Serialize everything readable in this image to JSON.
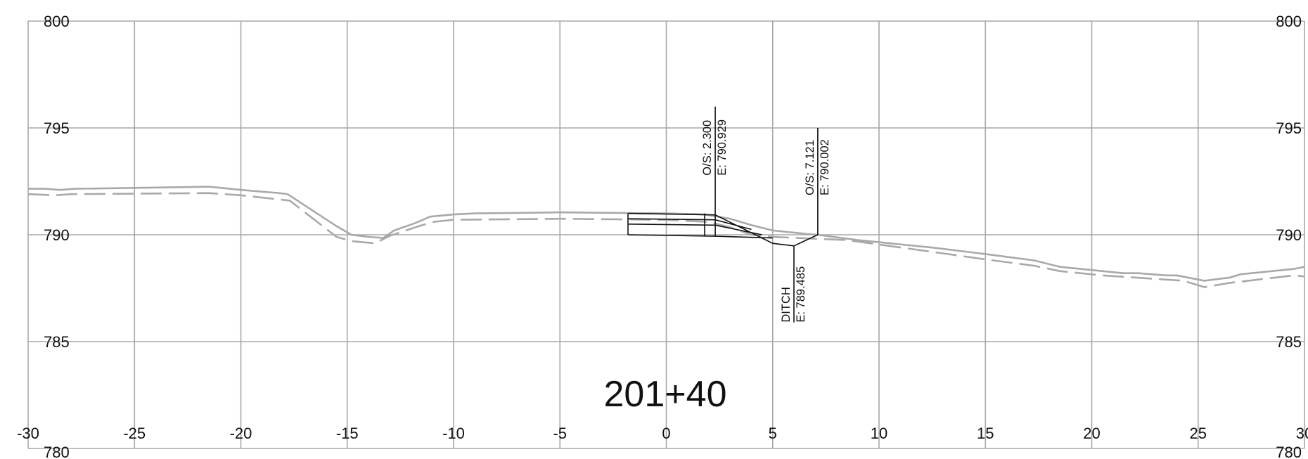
{
  "section": {
    "station": "201+40",
    "offset_axis": {
      "min": -30,
      "max": 30,
      "step": 5,
      "labels": [
        "-30",
        "-25",
        "-20",
        "-15",
        "-10",
        "-5",
        "0",
        "5",
        "10",
        "15",
        "20",
        "25",
        "30"
      ]
    },
    "elevation_axis": {
      "min": 780,
      "max": 800,
      "step": 5,
      "labels": [
        "800",
        "795",
        "790",
        "785",
        "780"
      ]
    },
    "existing_ground_solid": [
      [
        -30,
        792.15
      ],
      [
        -29.2,
        792.15
      ],
      [
        -28.5,
        792.1
      ],
      [
        -27.8,
        792.15
      ],
      [
        -21.5,
        792.25
      ],
      [
        -20,
        792.1
      ],
      [
        -18.2,
        791.95
      ],
      [
        -17.8,
        791.9
      ],
      [
        -16.5,
        791.05
      ],
      [
        -15.5,
        790.4
      ],
      [
        -14.8,
        790.0
      ],
      [
        -14,
        789.9
      ],
      [
        -13.3,
        789.85
      ],
      [
        -12.8,
        790.2
      ],
      [
        -11.8,
        790.55
      ],
      [
        -11.1,
        790.85
      ],
      [
        -10,
        790.95
      ],
      [
        -9,
        791.0
      ],
      [
        -5,
        791.05
      ],
      [
        0,
        791.0
      ],
      [
        1.8,
        790.95
      ],
      [
        3.0,
        790.75
      ],
      [
        4.0,
        790.45
      ],
      [
        5.0,
        790.2
      ],
      [
        6.5,
        790.05
      ],
      [
        7.1,
        790.0
      ],
      [
        9,
        789.75
      ],
      [
        12.5,
        789.4
      ],
      [
        15,
        789.1
      ],
      [
        17.3,
        788.8
      ],
      [
        18.5,
        788.5
      ],
      [
        20.5,
        788.3
      ],
      [
        21.5,
        788.2
      ],
      [
        22.2,
        788.2
      ],
      [
        23.5,
        788.1
      ],
      [
        24,
        788.1
      ],
      [
        25.3,
        787.85
      ],
      [
        26.5,
        788.0
      ],
      [
        27,
        788.15
      ],
      [
        29.5,
        788.4
      ],
      [
        30,
        788.5
      ]
    ],
    "existing_ground_dashed": [
      [
        -30,
        791.9
      ],
      [
        -28.7,
        791.85
      ],
      [
        -28,
        791.9
      ],
      [
        -21.5,
        791.95
      ],
      [
        -20,
        791.85
      ],
      [
        -17.7,
        791.6
      ],
      [
        -16.6,
        790.75
      ],
      [
        -15.5,
        789.9
      ],
      [
        -14.8,
        789.7
      ],
      [
        -13.7,
        789.6
      ],
      [
        -13,
        789.95
      ],
      [
        -11.8,
        790.35
      ],
      [
        -11,
        790.6
      ],
      [
        -10,
        790.7
      ],
      [
        -5,
        790.75
      ],
      [
        0,
        790.7
      ],
      [
        2,
        790.6
      ],
      [
        3,
        790.35
      ],
      [
        4,
        790.0
      ],
      [
        5,
        789.9
      ],
      [
        8.5,
        789.75
      ],
      [
        12.5,
        789.2
      ],
      [
        15,
        788.85
      ],
      [
        17.3,
        788.55
      ],
      [
        18.5,
        788.3
      ],
      [
        20.5,
        788.1
      ],
      [
        23.5,
        787.9
      ],
      [
        24.3,
        787.85
      ],
      [
        25.3,
        787.55
      ],
      [
        26.5,
        787.75
      ],
      [
        29.5,
        788.1
      ],
      [
        30,
        788.05
      ]
    ],
    "proposed_template": {
      "outline": [
        [
          -1.8,
          791.0
        ],
        [
          2.3,
          790.93
        ],
        [
          5.0,
          789.6
        ],
        [
          6.0,
          789.48
        ],
        [
          7.12,
          790.0
        ]
      ],
      "layers": [
        [
          [
            -1.8,
            790.75
          ],
          [
            2.3,
            790.7
          ],
          [
            4.0,
            790.25
          ]
        ],
        [
          [
            -1.8,
            790.5
          ],
          [
            2.3,
            790.45
          ],
          [
            4.5,
            790.0
          ]
        ],
        [
          [
            -1.8,
            790.0
          ],
          [
            2.3,
            789.93
          ],
          [
            5.0,
            789.85
          ]
        ]
      ],
      "left_edge": [
        [
          -1.8,
          791.0
        ],
        [
          -1.8,
          790.0
        ]
      ],
      "joints": [
        [
          [
            1.8,
            791.0
          ],
          [
            1.8,
            789.95
          ]
        ],
        [
          [
            2.3,
            790.93
          ],
          [
            2.3,
            789.95
          ]
        ]
      ]
    },
    "callouts": [
      {
        "offset": 2.3,
        "from_elev": 790.93,
        "to_elev": 796.0,
        "lines": [
          "O/S: 2.300",
          "E: 790.929"
        ],
        "side": "up"
      },
      {
        "offset": 7.12,
        "from_elev": 790.0,
        "to_elev": 795.0,
        "lines": [
          "O/S: 7.121",
          "E: 790.002"
        ],
        "side": "up"
      },
      {
        "offset": 6.0,
        "from_elev": 789.48,
        "to_elev": 785.9,
        "lines": [
          "DITCH",
          "E: 789.485"
        ],
        "side": "down"
      }
    ]
  }
}
